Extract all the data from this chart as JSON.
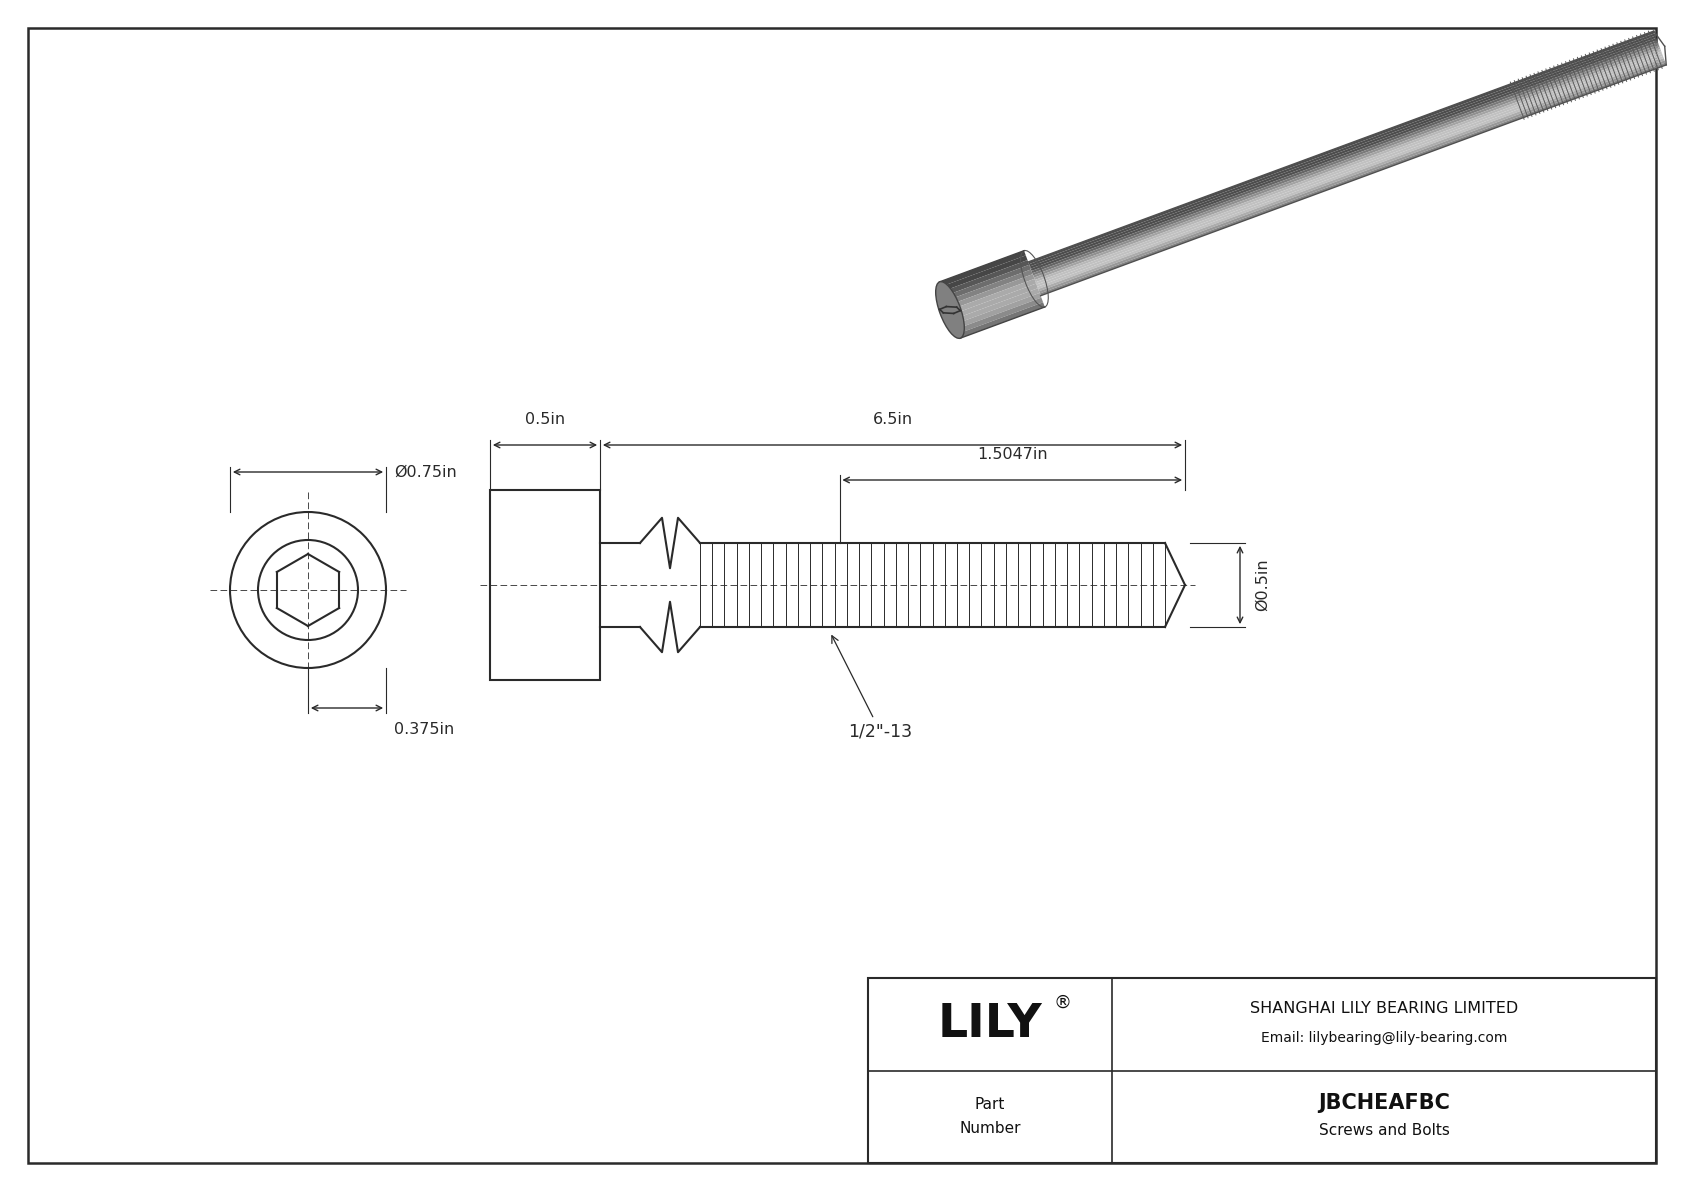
{
  "bg_color": "#ffffff",
  "line_color": "#2a2a2a",
  "title_company": "SHANGHAI LILY BEARING LIMITED",
  "title_email": "Email: lilybearing@lily-bearing.com",
  "part_number": "JBCHEAFBC",
  "part_category": "Screws and Bolts",
  "dim_outer_dia": "Ø0.75in",
  "dim_shaft_dia": "Ø0.5in",
  "dim_head_len": "0.5in",
  "dim_total_len": "6.5in",
  "dim_thread_len": "1.5047in",
  "dim_bottom_half": "0.375in",
  "thread_label": "1/2\"-13",
  "dim_line_color": "#2a2a2a",
  "bolt_shaft_color": "#9a9a9a",
  "bolt_head_color": "#888888",
  "bolt_dark": "#555555",
  "bolt_light": "#cccccc",
  "bolt_thread_color": "#777777"
}
